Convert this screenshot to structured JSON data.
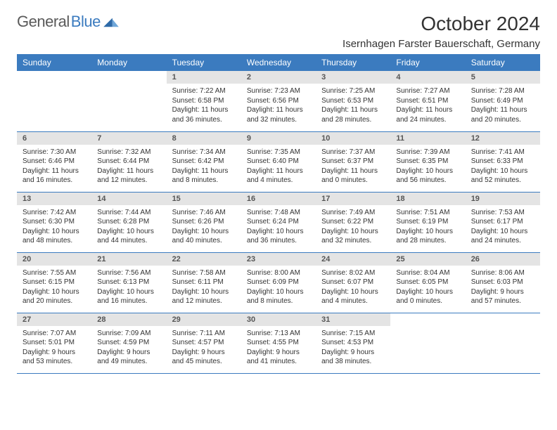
{
  "brand": {
    "name_gray": "General",
    "name_blue": "Blue"
  },
  "title": "October 2024",
  "location": "Isernhagen Farster Bauerschaft, Germany",
  "style": {
    "header_bg": "#3b7bbf",
    "header_fg": "#ffffff",
    "daynum_bg": "#e4e4e4",
    "row_border": "#3b7bbf",
    "body_fontsize": 10,
    "daynum_fontsize": 11,
    "th_fontsize": 12,
    "title_fontsize": 28,
    "location_fontsize": 15
  },
  "weekdays": [
    "Sunday",
    "Monday",
    "Tuesday",
    "Wednesday",
    "Thursday",
    "Friday",
    "Saturday"
  ],
  "weeks": [
    [
      {
        "empty": true
      },
      {
        "empty": true
      },
      {
        "n": "1",
        "sr": "7:22 AM",
        "ss": "6:58 PM",
        "dl": "11 hours and 36 minutes."
      },
      {
        "n": "2",
        "sr": "7:23 AM",
        "ss": "6:56 PM",
        "dl": "11 hours and 32 minutes."
      },
      {
        "n": "3",
        "sr": "7:25 AM",
        "ss": "6:53 PM",
        "dl": "11 hours and 28 minutes."
      },
      {
        "n": "4",
        "sr": "7:27 AM",
        "ss": "6:51 PM",
        "dl": "11 hours and 24 minutes."
      },
      {
        "n": "5",
        "sr": "7:28 AM",
        "ss": "6:49 PM",
        "dl": "11 hours and 20 minutes."
      }
    ],
    [
      {
        "n": "6",
        "sr": "7:30 AM",
        "ss": "6:46 PM",
        "dl": "11 hours and 16 minutes."
      },
      {
        "n": "7",
        "sr": "7:32 AM",
        "ss": "6:44 PM",
        "dl": "11 hours and 12 minutes."
      },
      {
        "n": "8",
        "sr": "7:34 AM",
        "ss": "6:42 PM",
        "dl": "11 hours and 8 minutes."
      },
      {
        "n": "9",
        "sr": "7:35 AM",
        "ss": "6:40 PM",
        "dl": "11 hours and 4 minutes."
      },
      {
        "n": "10",
        "sr": "7:37 AM",
        "ss": "6:37 PM",
        "dl": "11 hours and 0 minutes."
      },
      {
        "n": "11",
        "sr": "7:39 AM",
        "ss": "6:35 PM",
        "dl": "10 hours and 56 minutes."
      },
      {
        "n": "12",
        "sr": "7:41 AM",
        "ss": "6:33 PM",
        "dl": "10 hours and 52 minutes."
      }
    ],
    [
      {
        "n": "13",
        "sr": "7:42 AM",
        "ss": "6:30 PM",
        "dl": "10 hours and 48 minutes."
      },
      {
        "n": "14",
        "sr": "7:44 AM",
        "ss": "6:28 PM",
        "dl": "10 hours and 44 minutes."
      },
      {
        "n": "15",
        "sr": "7:46 AM",
        "ss": "6:26 PM",
        "dl": "10 hours and 40 minutes."
      },
      {
        "n": "16",
        "sr": "7:48 AM",
        "ss": "6:24 PM",
        "dl": "10 hours and 36 minutes."
      },
      {
        "n": "17",
        "sr": "7:49 AM",
        "ss": "6:22 PM",
        "dl": "10 hours and 32 minutes."
      },
      {
        "n": "18",
        "sr": "7:51 AM",
        "ss": "6:19 PM",
        "dl": "10 hours and 28 minutes."
      },
      {
        "n": "19",
        "sr": "7:53 AM",
        "ss": "6:17 PM",
        "dl": "10 hours and 24 minutes."
      }
    ],
    [
      {
        "n": "20",
        "sr": "7:55 AM",
        "ss": "6:15 PM",
        "dl": "10 hours and 20 minutes."
      },
      {
        "n": "21",
        "sr": "7:56 AM",
        "ss": "6:13 PM",
        "dl": "10 hours and 16 minutes."
      },
      {
        "n": "22",
        "sr": "7:58 AM",
        "ss": "6:11 PM",
        "dl": "10 hours and 12 minutes."
      },
      {
        "n": "23",
        "sr": "8:00 AM",
        "ss": "6:09 PM",
        "dl": "10 hours and 8 minutes."
      },
      {
        "n": "24",
        "sr": "8:02 AM",
        "ss": "6:07 PM",
        "dl": "10 hours and 4 minutes."
      },
      {
        "n": "25",
        "sr": "8:04 AM",
        "ss": "6:05 PM",
        "dl": "10 hours and 0 minutes."
      },
      {
        "n": "26",
        "sr": "8:06 AM",
        "ss": "6:03 PM",
        "dl": "9 hours and 57 minutes."
      }
    ],
    [
      {
        "n": "27",
        "sr": "7:07 AM",
        "ss": "5:01 PM",
        "dl": "9 hours and 53 minutes."
      },
      {
        "n": "28",
        "sr": "7:09 AM",
        "ss": "4:59 PM",
        "dl": "9 hours and 49 minutes."
      },
      {
        "n": "29",
        "sr": "7:11 AM",
        "ss": "4:57 PM",
        "dl": "9 hours and 45 minutes."
      },
      {
        "n": "30",
        "sr": "7:13 AM",
        "ss": "4:55 PM",
        "dl": "9 hours and 41 minutes."
      },
      {
        "n": "31",
        "sr": "7:15 AM",
        "ss": "4:53 PM",
        "dl": "9 hours and 38 minutes."
      },
      {
        "empty": true
      },
      {
        "empty": true
      }
    ]
  ]
}
